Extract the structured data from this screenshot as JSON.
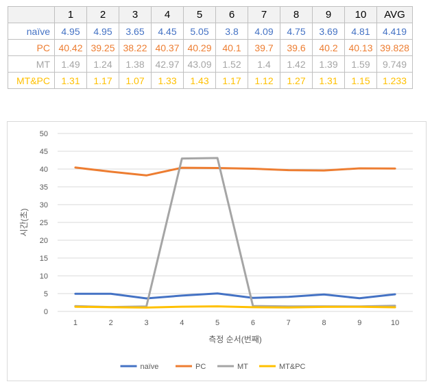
{
  "table": {
    "header": [
      "",
      "1",
      "2",
      "3",
      "4",
      "5",
      "6",
      "7",
      "8",
      "9",
      "10",
      "AVG"
    ],
    "rows": [
      {
        "label": "naïve",
        "color": "#4472c4",
        "cells": [
          "4.95",
          "4.95",
          "3.65",
          "4.45",
          "5.05",
          "3.8",
          "4.09",
          "4.75",
          "3.69",
          "4.81",
          "4.419"
        ]
      },
      {
        "label": "PC",
        "color": "#ed7d31",
        "cells": [
          "40.42",
          "39.25",
          "38.22",
          "40.37",
          "40.29",
          "40.1",
          "39.7",
          "39.6",
          "40.2",
          "40.13",
          "39.828"
        ]
      },
      {
        "label": "MT",
        "color": "#a5a5a5",
        "cells": [
          "1.49",
          "1.24",
          "1.38",
          "42.97",
          "43.09",
          "1.52",
          "1.4",
          "1.42",
          "1.39",
          "1.59",
          "9.749"
        ]
      },
      {
        "label": "MT&PC",
        "color": "#ffc000",
        "cells": [
          "1.31",
          "1.17",
          "1.07",
          "1.33",
          "1.43",
          "1.17",
          "1.12",
          "1.27",
          "1.31",
          "1.15",
          "1.233"
        ]
      }
    ]
  },
  "chart_data": {
    "type": "line",
    "categories": [
      "1",
      "2",
      "3",
      "4",
      "5",
      "6",
      "7",
      "8",
      "9",
      "10"
    ],
    "ylim": [
      0,
      50
    ],
    "yticks": [
      "0",
      "5",
      "10",
      "15",
      "20",
      "25",
      "30",
      "35",
      "40",
      "45",
      "50"
    ],
    "xlabel": "측정 순서(번째)",
    "ylabel": "시간(초)",
    "grid": true,
    "legend": "bottom",
    "series": [
      {
        "name": "naïve",
        "color": "#4472c4",
        "values": [
          4.95,
          4.95,
          3.65,
          4.45,
          5.05,
          3.8,
          4.09,
          4.75,
          3.69,
          4.81
        ]
      },
      {
        "name": "PC",
        "color": "#ed7d31",
        "values": [
          40.42,
          39.25,
          38.22,
          40.37,
          40.29,
          40.1,
          39.7,
          39.6,
          40.2,
          40.13
        ]
      },
      {
        "name": "MT",
        "color": "#a5a5a5",
        "values": [
          1.49,
          1.24,
          1.38,
          42.97,
          43.09,
          1.52,
          1.4,
          1.42,
          1.39,
          1.59
        ]
      },
      {
        "name": "MT&PC",
        "color": "#ffc000",
        "values": [
          1.31,
          1.17,
          1.07,
          1.33,
          1.43,
          1.17,
          1.12,
          1.27,
          1.31,
          1.15
        ]
      }
    ]
  }
}
